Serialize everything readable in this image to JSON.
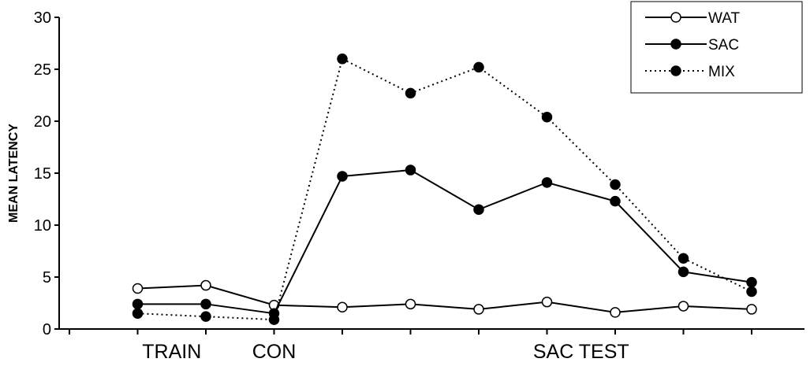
{
  "chart_data": {
    "type": "line",
    "ylabel": "MEAN LATENCY",
    "xlabel": "",
    "ylim": [
      0,
      30
    ],
    "yticks": [
      0,
      5,
      10,
      15,
      20,
      25,
      30
    ],
    "x_count": 11,
    "phase_labels": [
      {
        "text": "TRAIN",
        "at": 1.5
      },
      {
        "text": "CON",
        "at": 3
      },
      {
        "text": "SAC TEST",
        "at": 7.5
      }
    ],
    "series": [
      {
        "name": "WAT",
        "style": "solid",
        "marker": "open",
        "values": [
          3.9,
          4.2,
          2.3,
          2.1,
          2.4,
          1.9,
          2.6,
          1.6,
          2.2,
          1.9
        ]
      },
      {
        "name": "SAC",
        "style": "solid",
        "marker": "filled",
        "values": [
          2.4,
          2.4,
          1.5,
          14.7,
          15.3,
          11.5,
          14.1,
          12.3,
          5.5,
          4.5
        ]
      },
      {
        "name": "MIX",
        "style": "dotted",
        "marker": "filled",
        "values": [
          1.5,
          1.2,
          0.9,
          26.0,
          22.7,
          25.2,
          20.4,
          13.9,
          6.8,
          3.6
        ]
      }
    ],
    "legend_position": "top-right",
    "grid": false
  }
}
